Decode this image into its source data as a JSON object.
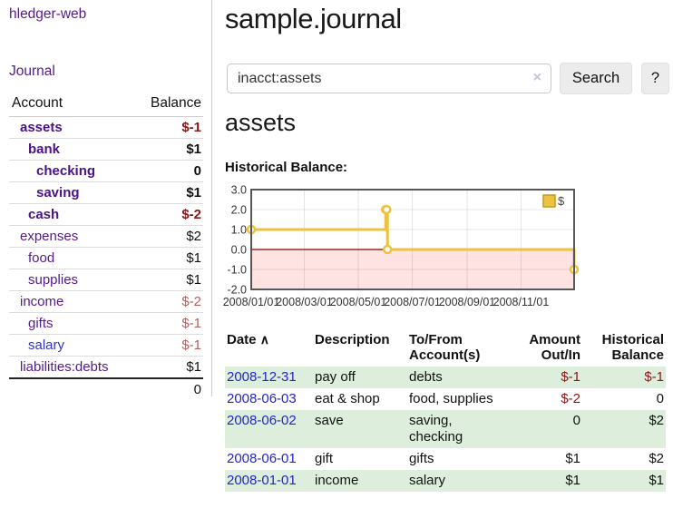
{
  "app": {
    "title": "hledger-web"
  },
  "sidebar": {
    "journal_link": "Journal",
    "table": {
      "account_header": "Account",
      "balance_header": "Balance",
      "accounts": [
        {
          "name": "assets",
          "depth": 1,
          "match": true,
          "balance": "$-1"
        },
        {
          "name": "bank",
          "depth": 2,
          "match": true,
          "balance": "$1"
        },
        {
          "name": "checking",
          "depth": 3,
          "match": true,
          "balance": "0"
        },
        {
          "name": "saving",
          "depth": 3,
          "match": true,
          "balance": "$1"
        },
        {
          "name": "cash",
          "depth": 2,
          "match": true,
          "balance": "$-2"
        },
        {
          "name": "expenses",
          "depth": 1,
          "match": false,
          "balance": "$2"
        },
        {
          "name": "food",
          "depth": 2,
          "match": false,
          "balance": "$1"
        },
        {
          "name": "supplies",
          "depth": 2,
          "match": false,
          "balance": "$1"
        },
        {
          "name": "income",
          "depth": 1,
          "match": false,
          "balance": "$-2"
        },
        {
          "name": "gifts",
          "depth": 2,
          "match": false,
          "balance": "$-1"
        },
        {
          "name": "salary",
          "depth": 2,
          "match": false,
          "balance": "$-1",
          "link_color": "blue"
        },
        {
          "name": "liabilities:debts",
          "depth": 1,
          "match": false,
          "balance": "$1"
        }
      ],
      "total": "0"
    }
  },
  "header": {
    "title": "sample.journal"
  },
  "search": {
    "value": "inacct:assets",
    "clear_icon": "×",
    "button_label": "Search",
    "help_label": "?"
  },
  "account_page": {
    "heading": "assets",
    "chart_title": "Historical Balance:"
  },
  "chart_data": {
    "type": "line",
    "title": "Historical Balance:",
    "step": true,
    "x_start": "2008-01-01",
    "x_end": "2008-12-31",
    "ylim": [
      -2.0,
      3.0
    ],
    "y_ticks": [
      3.0,
      2.0,
      1.0,
      0.0,
      -1.0,
      -2.0
    ],
    "x_tick_dates": [
      "2008-01-01",
      "2008-03-01",
      "2008-05-01",
      "2008-07-01",
      "2008-09-01",
      "2008-11-01"
    ],
    "x_tick_labels": [
      "2008/01/01",
      "2008/03/01",
      "2008/05/01",
      "2008/07/01",
      "2008/09/01",
      "2008/11/01"
    ],
    "series": [
      {
        "name": "$",
        "color": "#edc240",
        "points": [
          [
            "2008-01-01",
            1.0
          ],
          [
            "2008-06-01",
            2.0
          ],
          [
            "2008-06-02",
            2.0
          ],
          [
            "2008-06-03",
            0.0
          ],
          [
            "2008-12-31",
            -1.0
          ]
        ]
      }
    ],
    "legend": {
      "label": "$",
      "position": "top-right"
    },
    "negative_region_fill": "#ffe2e2",
    "zero_line_color": "#8b0000",
    "grid": true
  },
  "register": {
    "sort_icon": "∧",
    "columns": [
      "Date",
      "Description",
      "To/From Account(s)",
      "Amount Out/In",
      "Historical Balance"
    ],
    "rows": [
      {
        "date": "2008-12-31",
        "description": "pay off",
        "accounts": "debts",
        "amount": "$-1",
        "balance": "$-1"
      },
      {
        "date": "2008-06-03",
        "description": "eat & shop",
        "accounts": "food, supplies",
        "amount": "$-2",
        "balance": "0"
      },
      {
        "date": "2008-06-02",
        "description": "save",
        "accounts": "saving, checking",
        "amount": "0",
        "balance": "$2"
      },
      {
        "date": "2008-06-01",
        "description": "gift",
        "accounts": "gifts",
        "amount": "$1",
        "balance": "$2"
      },
      {
        "date": "2008-01-01",
        "description": "income",
        "accounts": "salary",
        "amount": "$1",
        "balance": "$1"
      }
    ]
  },
  "colors": {
    "link_purple": "#551a8b",
    "link_blue": "#3333cc",
    "date_blue": "#2424cc",
    "negative_dark": "#8b1414",
    "negative_light": "#b35f5f",
    "row_green": "#ddeedd",
    "series_gold": "#edc240",
    "negative_fill": "#ffe2e2",
    "zero_line": "#8b0000"
  }
}
